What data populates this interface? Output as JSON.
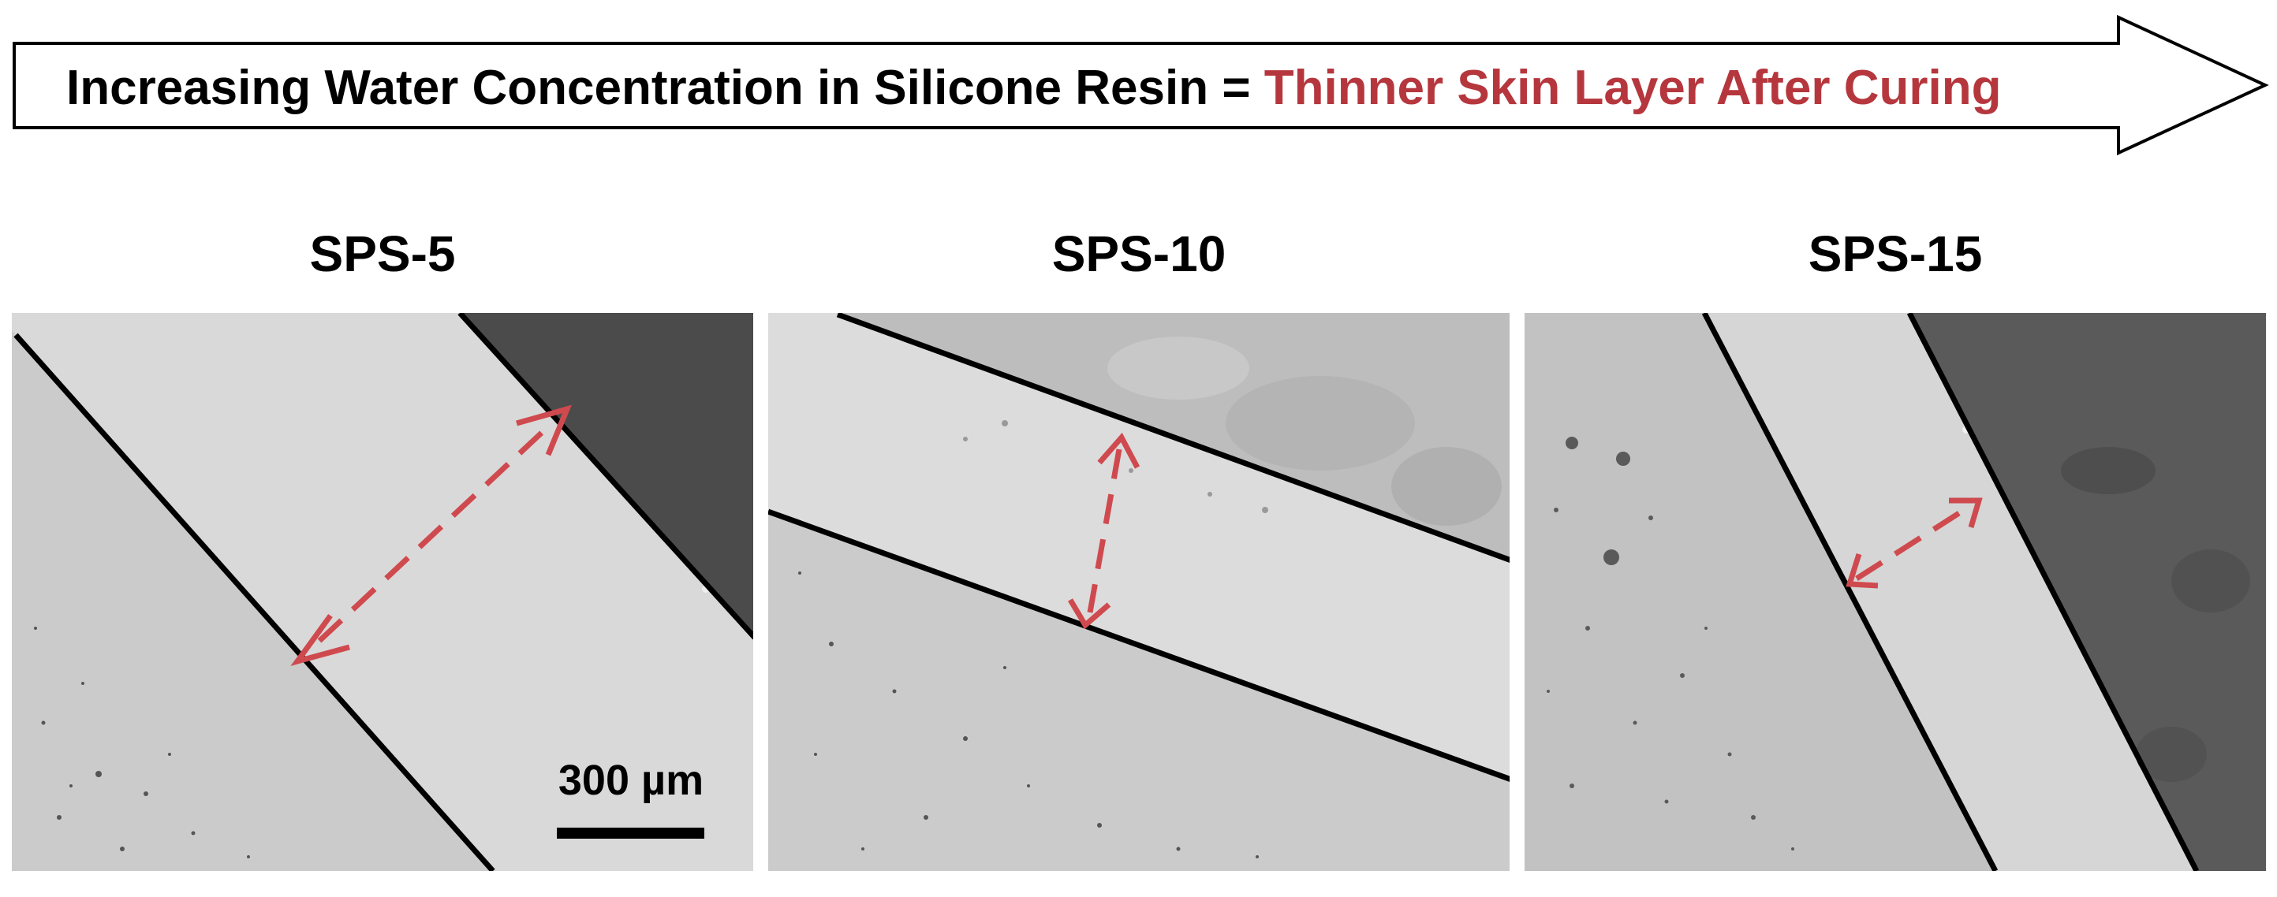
{
  "banner": {
    "prefix": "Increasing Water Concentration in Silicone Resin = ",
    "highlight": "Thinner Skin Layer After Curing",
    "highlight_color": "#b5373d"
  },
  "panels": [
    {
      "label": "SPS-5"
    },
    {
      "label": "SPS-10"
    },
    {
      "label": "SPS-15"
    }
  ],
  "scale_bar": {
    "label": "300 µm"
  },
  "colors": {
    "arrow": "#cf4a4e",
    "boundary": "#000000"
  }
}
